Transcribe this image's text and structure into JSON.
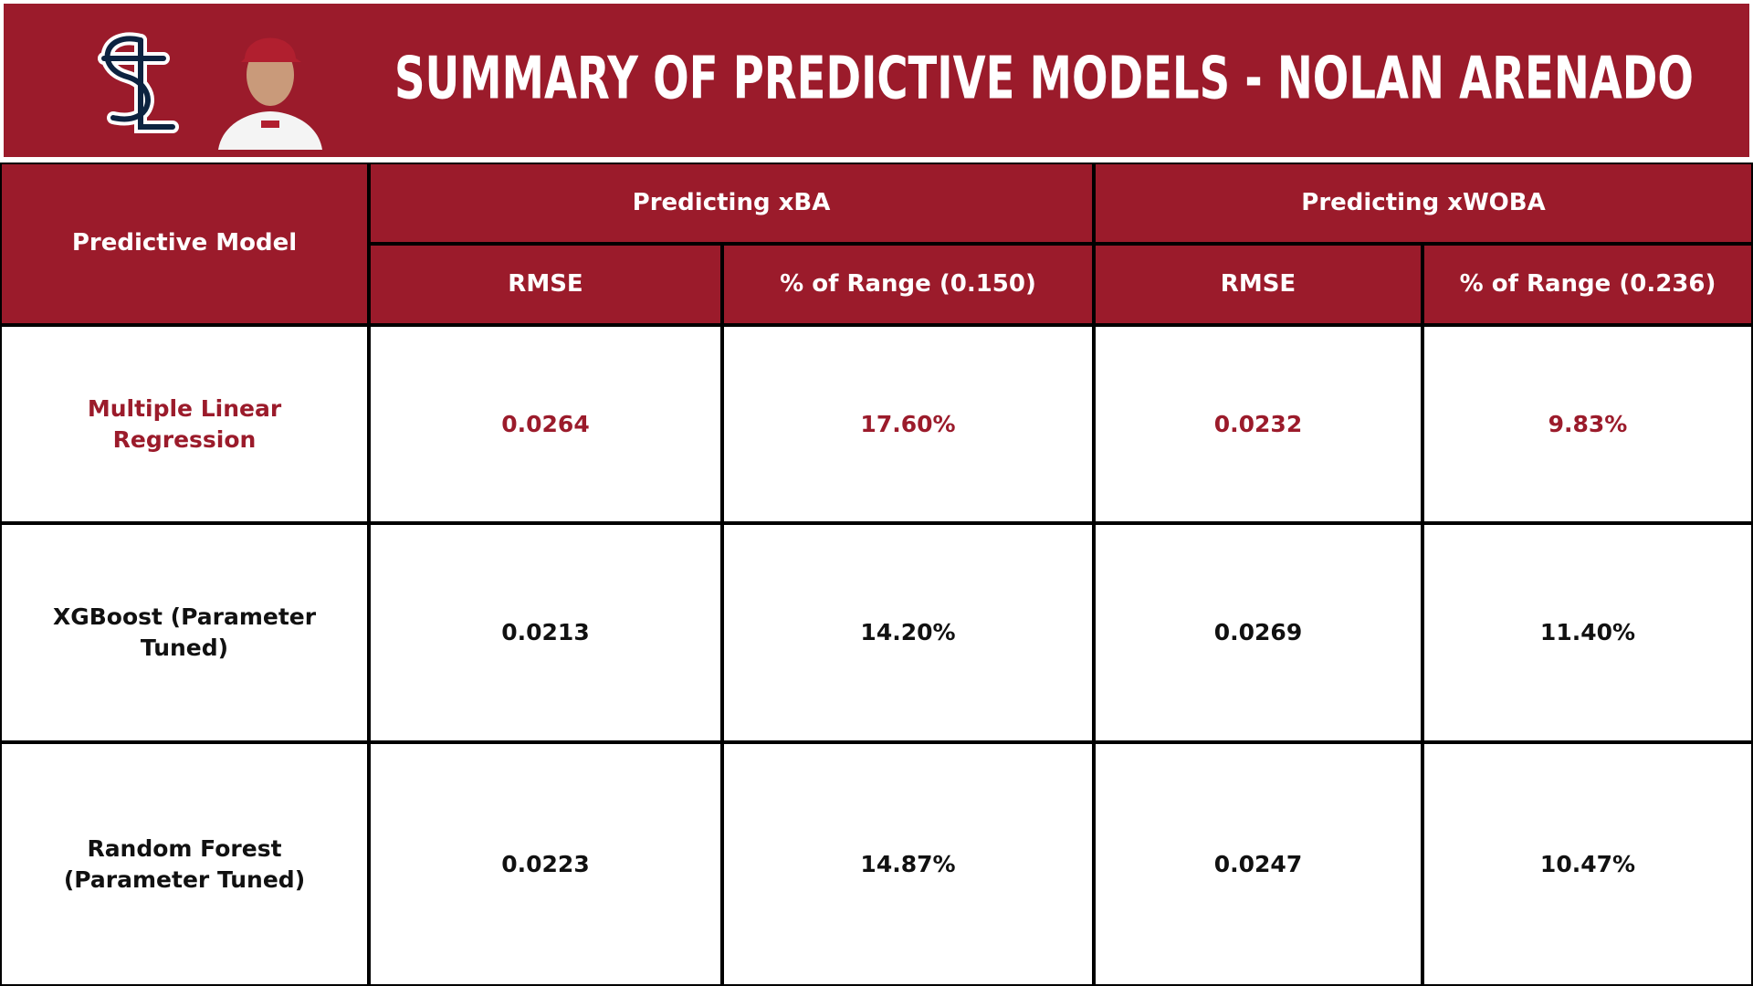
{
  "header": {
    "title": "SUMMARY OF PREDICTIVE MODELS - NOLAN ARENADO"
  },
  "table": {
    "model_header": "Predictive Model",
    "groups": [
      {
        "label": "Predicting xBA",
        "subheaders": [
          "RMSE",
          "% of Range (0.150)"
        ]
      },
      {
        "label": "Predicting xWOBA",
        "subheaders": [
          "RMSE",
          "% of Range (0.236)"
        ]
      }
    ],
    "rows": [
      {
        "color": "#9b1b2b",
        "cells": [
          "Multiple Linear Regression",
          "0.0264",
          "17.60%",
          "0.0232",
          "9.83%"
        ]
      },
      {
        "color": "#111111",
        "cells": [
          "XGBoost (Parameter Tuned)",
          "0.0213",
          "14.20%",
          "0.0269",
          "11.40%"
        ]
      },
      {
        "color": "#111111",
        "cells": [
          "Random Forest (Parameter Tuned)",
          "0.0223",
          "14.87%",
          "0.0247",
          "10.47%"
        ]
      }
    ]
  }
}
